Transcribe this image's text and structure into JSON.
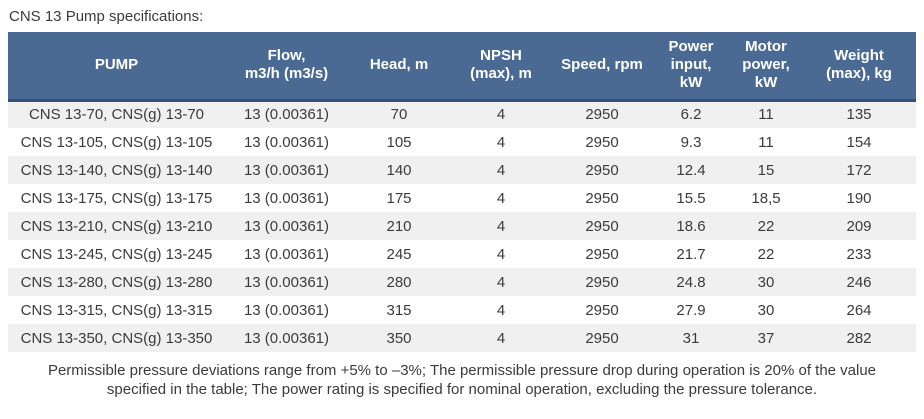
{
  "page": {
    "title": "CNS 13 Pump specifications:"
  },
  "theme": {
    "header_bg": "#4a6a93",
    "header_border": "#33517a",
    "header_text": "#ffffff",
    "row_bg": "#ffffff",
    "row_alt_bg": "#f0f0f0",
    "body_text": "#3b3b3b",
    "title_text": "#3b3b3b"
  },
  "table": {
    "headers": [
      "PUMP",
      "Flow,\nm3/h (m3/s)",
      "Head, m",
      "NPSH\n(max), m",
      "Speed, rpm",
      "Power\ninput,\nkW",
      "Motor\npower,\nkW",
      "Weight\n(max), kg"
    ],
    "rows": [
      [
        "CNS 13-70, CNS(g) 13-70",
        "13 (0.00361)",
        "70",
        "4",
        "2950",
        "6.2",
        "11",
        "135"
      ],
      [
        "CNS 13-105, CNS(g) 13-105",
        "13 (0.00361)",
        "105",
        "4",
        "2950",
        "9.3",
        "11",
        "154"
      ],
      [
        "CNS 13-140, CNS(g) 13-140",
        "13 (0.00361)",
        "140",
        "4",
        "2950",
        "12.4",
        "15",
        "172"
      ],
      [
        "CNS 13-175, CNS(g) 13-175",
        "13 (0.00361)",
        "175",
        "4",
        "2950",
        "15.5",
        "18,5",
        "190"
      ],
      [
        "CNS 13-210, CNS(g) 13-210",
        "13 (0.00361)",
        "210",
        "4",
        "2950",
        "18.6",
        "22",
        "209"
      ],
      [
        "CNS 13-245, CNS(g) 13-245",
        "13 (0.00361)",
        "245",
        "4",
        "2950",
        "21.7",
        "22",
        "233"
      ],
      [
        "CNS 13-280, CNS(g) 13-280",
        "13 (0.00361)",
        "280",
        "4",
        "2950",
        "24.8",
        "30",
        "246"
      ],
      [
        "CNS 13-315, CNS(g) 13-315",
        "13 (0.00361)",
        "315",
        "4",
        "2950",
        "27.9",
        "30",
        "264"
      ],
      [
        "CNS 13-350, CNS(g) 13-350",
        "13 (0.00361)",
        "350",
        "4",
        "2950",
        "31",
        "37",
        "282"
      ]
    ]
  },
  "footer": {
    "lines": [
      "Permissible pressure deviations range from +5% to –3%; The permissible pressure drop during operation is 20% of the value",
      "specified in the table; The power rating is specified for nominal operation, excluding the pressure tolerance."
    ]
  }
}
